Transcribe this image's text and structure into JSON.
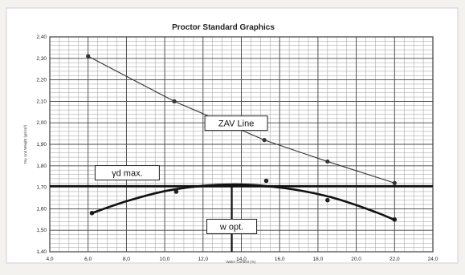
{
  "chart_data": {
    "type": "line",
    "title": "Proctor Standard Graphics",
    "xlabel": "Water Content (%)",
    "ylabel": "Dry Unit Weight (gr/cm³)",
    "xlim": [
      4.0,
      24.0
    ],
    "ylim": [
      1.4,
      2.4
    ],
    "x_ticks": [
      "4,0",
      "6,0",
      "8,0",
      "10,0",
      "12,0",
      "14,0",
      "16,0",
      "18,0",
      "20,0",
      "22,0",
      "24,0"
    ],
    "y_ticks": [
      "1,40",
      "1,50",
      "1,60",
      "1,70",
      "1,80",
      "1,90",
      "2,00",
      "2,10",
      "2,20",
      "2,30",
      "2,40"
    ],
    "grid": true,
    "series": [
      {
        "name": "ZAV Line",
        "style": "line",
        "color": "#333333",
        "x": [
          6.0,
          10.5,
          15.2,
          18.5,
          22.0
        ],
        "y": [
          2.31,
          2.1,
          1.92,
          1.82,
          1.72
        ]
      },
      {
        "style": "points",
        "color": "#222222",
        "x": [
          6.2,
          10.6,
          15.3,
          18.5,
          22.0
        ],
        "y": [
          1.58,
          1.68,
          1.73,
          1.64,
          1.55
        ]
      },
      {
        "style": "curve",
        "color": "#111111",
        "x": [
          6.2,
          8.0,
          10.0,
          12.0,
          13.5,
          15.0,
          17.0,
          19.0,
          21.0,
          22.0
        ],
        "y": [
          1.58,
          1.635,
          1.682,
          1.707,
          1.713,
          1.708,
          1.686,
          1.646,
          1.585,
          1.548
        ]
      }
    ],
    "reference_lines": [
      {
        "orientation": "horizontal",
        "value": 1.706,
        "label": "γd max."
      },
      {
        "orientation": "vertical",
        "value": 13.5,
        "label": "w opt."
      }
    ],
    "annotations": [
      {
        "text": "ZAV Line",
        "x": 15.2,
        "y": 1.92
      },
      {
        "text": "γd max.",
        "x": 6.7,
        "y": 1.73
      },
      {
        "text": "w opt.",
        "x": 13.5,
        "y": 1.57
      }
    ]
  }
}
